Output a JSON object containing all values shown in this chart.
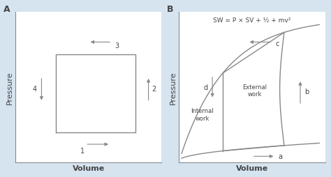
{
  "bg_color": "#d6e4f0",
  "plot_bg": "#ffffff",
  "line_color": "#888888",
  "text_color": "#444444",
  "panel_A_label": "A",
  "panel_B_label": "B",
  "panel_A_xlabel": "Volume",
  "panel_A_ylabel": "Pressure",
  "panel_B_xlabel": "Volume",
  "panel_B_ylabel": "Pressure",
  "formula": "SW = P × SV + ¹⁄₂ + mv²",
  "internal_work_label": "Internal\nwork",
  "external_work_label": "External\nwork"
}
